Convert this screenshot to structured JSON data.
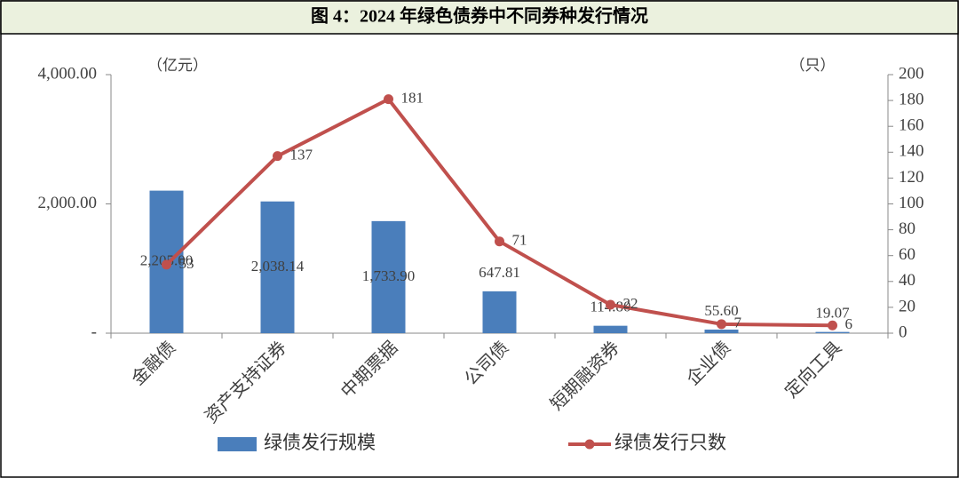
{
  "chart_data": {
    "type": "bar",
    "title": "图 4：2024 年绿色债券中不同券种发行情况",
    "y_unit": "（亿元）",
    "y2_unit": "（只）",
    "categories": [
      "金融债",
      "资产支持证券",
      "中期票据",
      "公司债",
      "短期融资券",
      "企业债",
      "定向工具"
    ],
    "series": [
      {
        "name": "绿债发行规模",
        "type": "bar",
        "color": "#4a7ebb",
        "values": [
          2205.0,
          2038.14,
          1733.9,
          647.81,
          114.8,
          55.6,
          19.07
        ],
        "value_labels": [
          "2,205.00",
          "2,038.14",
          "1,733.90",
          "647.81",
          "114.80",
          "55.60",
          "19.07"
        ]
      },
      {
        "name": "绿债发行只数",
        "type": "line",
        "axis": "y2",
        "color": "#c0504d",
        "values": [
          53,
          137,
          181,
          71,
          22,
          7,
          6
        ]
      }
    ],
    "ylim": [
      0,
      4000
    ],
    "yticks": [
      {
        "value": 0,
        "label": "-"
      },
      {
        "value": 2000,
        "label": "2,000.00"
      },
      {
        "value": 4000,
        "label": "4,000.00"
      }
    ],
    "y2lim": [
      0,
      200
    ],
    "y2ticks": [
      0,
      20,
      40,
      60,
      80,
      100,
      120,
      140,
      160,
      180,
      200
    ],
    "legend": "bottom"
  }
}
